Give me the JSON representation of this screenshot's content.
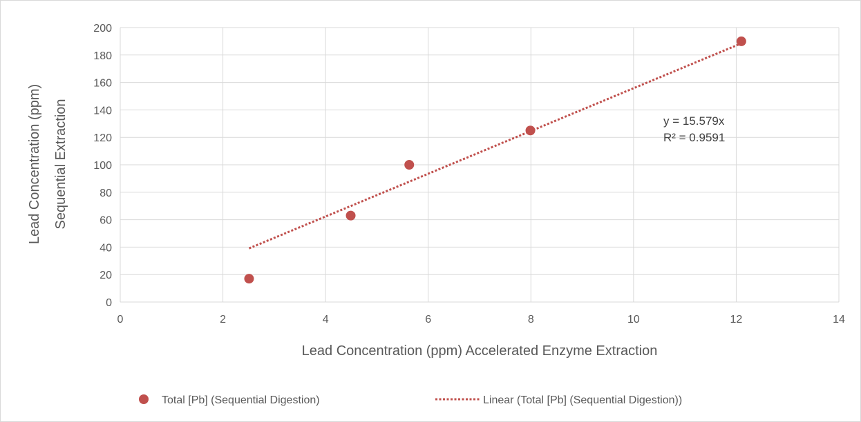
{
  "chart_data": {
    "type": "scatter",
    "title": "",
    "xlabel": "Lead Concentration (ppm) Accelerated Enzyme Extraction",
    "ylabel_lines": [
      "Lead Concentration (ppm)",
      "Sequential Extraction"
    ],
    "xlim": [
      0,
      14
    ],
    "ylim": [
      0,
      200
    ],
    "x_ticks": [
      0,
      2,
      4,
      6,
      8,
      10,
      12,
      14
    ],
    "y_ticks": [
      0,
      20,
      40,
      60,
      80,
      100,
      120,
      140,
      160,
      180,
      200
    ],
    "grid": true,
    "legend_position": "bottom",
    "series": [
      {
        "name": "Total [Pb] (Sequential Digestion)",
        "color": "#C0504D",
        "points": [
          {
            "x": 2.51,
            "y": 17
          },
          {
            "x": 4.49,
            "y": 63
          },
          {
            "x": 5.63,
            "y": 100
          },
          {
            "x": 7.99,
            "y": 125
          },
          {
            "x": 12.1,
            "y": 190
          }
        ]
      }
    ],
    "trendline": {
      "name": "Linear (Total [Pb] (Sequential Digestion))",
      "type": "linear",
      "slope": 15.579,
      "intercept": 0,
      "x_range": [
        2.51,
        12.1
      ],
      "color": "#C0504D",
      "equation_label": "y = 15.579x",
      "r2_label": "R² = 0.9591"
    }
  }
}
